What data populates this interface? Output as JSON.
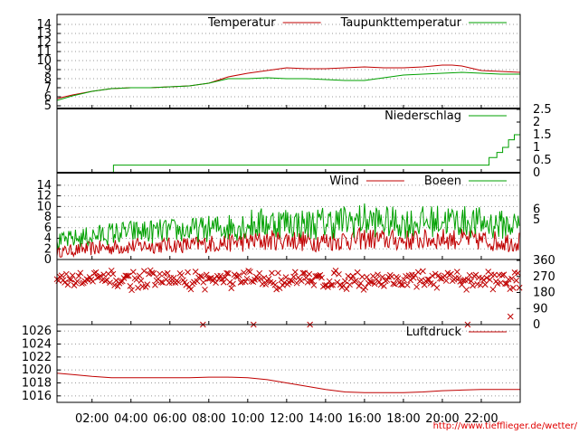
{
  "credit_url": "http://www.tiefflieger.de/wetter/",
  "x_tick_labels": [
    "02:00",
    "04:00",
    "06:00",
    "08:00",
    "10:00",
    "12:00",
    "14:00",
    "16:00",
    "18:00",
    "20:00",
    "22:00"
  ],
  "colors": {
    "red": "#c00000",
    "green": "#00a000",
    "grid": "#999999"
  },
  "chart_data": [
    {
      "id": "temperature",
      "type": "line",
      "x_unit": "hour",
      "xlim": [
        0.2,
        24
      ],
      "ylim": [
        5,
        14.5
      ],
      "y_ticks": [
        5,
        6,
        7,
        8,
        9,
        10,
        11,
        12,
        13,
        14
      ],
      "grid": true,
      "legend_position": "top-right",
      "series": [
        {
          "name": "Temperatur",
          "color": "#c00000",
          "x": [
            0.2,
            1,
            2,
            3,
            4,
            5,
            6,
            7,
            8,
            9,
            10,
            11,
            12,
            13,
            14,
            15,
            16,
            17,
            18,
            19,
            20,
            20.5,
            21,
            22,
            23,
            24
          ],
          "y": [
            5.8,
            6.2,
            6.6,
            6.9,
            7.0,
            7.0,
            7.1,
            7.2,
            7.5,
            8.2,
            8.6,
            8.9,
            9.2,
            9.1,
            9.1,
            9.2,
            9.3,
            9.2,
            9.2,
            9.3,
            9.5,
            9.5,
            9.4,
            8.9,
            8.8,
            8.7
          ]
        },
        {
          "name": "Taupunkttemperatur",
          "color": "#00a000",
          "x": [
            0.2,
            1,
            2,
            3,
            4,
            5,
            6,
            7,
            8,
            9,
            10,
            11,
            12,
            13,
            14,
            15,
            16,
            17,
            18,
            19,
            20,
            21,
            22,
            23,
            24
          ],
          "y": [
            5.6,
            6.1,
            6.6,
            6.9,
            7.0,
            7.0,
            7.1,
            7.2,
            7.5,
            8.0,
            8.0,
            8.1,
            8.0,
            8.0,
            7.9,
            7.8,
            7.8,
            8.1,
            8.4,
            8.5,
            8.6,
            8.7,
            8.6,
            8.5,
            8.5
          ]
        }
      ]
    },
    {
      "id": "precipitation",
      "type": "line",
      "x_unit": "hour",
      "xlim": [
        0.2,
        24
      ],
      "ylim": [
        0,
        2.5
      ],
      "y_ticks": [
        0,
        0.5,
        1,
        1.5,
        2,
        2.5
      ],
      "y_axis_side": "right",
      "legend_position": "top-right",
      "series": [
        {
          "name": "Niederschlag",
          "color": "#00a000",
          "x": [
            0.2,
            3.1,
            3.1,
            22.4,
            22.4,
            22.8,
            22.8,
            23.1,
            23.1,
            23.4,
            23.4,
            23.7,
            23.7,
            24
          ],
          "y": [
            0,
            0,
            0.3,
            0.3,
            0.6,
            0.6,
            0.8,
            0.8,
            1.0,
            1.0,
            1.3,
            1.3,
            1.5,
            1.5
          ]
        }
      ]
    },
    {
      "id": "wind",
      "type": "line",
      "x_unit": "hour",
      "xlim": [
        0.2,
        24
      ],
      "ylim": [
        0,
        15
      ],
      "y_ticks": [
        0,
        2,
        4,
        6,
        8,
        10,
        12,
        14
      ],
      "y2_ticks": [
        5,
        6
      ],
      "grid": true,
      "legend_position": "top-right",
      "series": [
        {
          "name": "Wind",
          "color": "#c00000",
          "x": [
            0.2,
            1,
            2,
            3,
            4,
            5,
            6,
            7,
            8,
            9,
            10,
            11,
            12,
            13,
            14,
            15,
            16,
            17,
            18,
            19,
            20,
            21,
            22,
            23,
            24
          ],
          "y": [
            1.2,
            1.5,
            1.8,
            2.0,
            2.2,
            2.3,
            2.4,
            2.4,
            2.6,
            2.8,
            3.0,
            3.2,
            3.4,
            3.0,
            3.1,
            3.3,
            3.5,
            3.3,
            3.2,
            3.3,
            3.5,
            3.4,
            3.2,
            3.0,
            3.0
          ],
          "amplitude": [
            1.0,
            1.2,
            1.4,
            1.5,
            1.5,
            1.5,
            1.5,
            1.6,
            1.7,
            1.8,
            2.0,
            2.0,
            2.0,
            2.0,
            2.0,
            2.1,
            2.1,
            2.0,
            2.0,
            2.0,
            2.0,
            2.0,
            2.0,
            2.0,
            2.0
          ]
        },
        {
          "name": "Boeen",
          "color": "#00a000",
          "x": [
            0.2,
            1,
            2,
            3,
            4,
            5,
            6,
            7,
            8,
            9,
            10,
            11,
            12,
            13,
            14,
            15,
            16,
            17,
            18,
            19,
            20,
            21,
            22,
            23,
            24
          ],
          "y": [
            3.0,
            3.5,
            4.0,
            4.5,
            4.8,
            4.8,
            5.0,
            5.0,
            5.3,
            5.6,
            6.0,
            6.3,
            6.5,
            6.0,
            6.3,
            6.5,
            6.8,
            6.5,
            6.3,
            6.5,
            6.8,
            6.6,
            6.3,
            6.0,
            6.0
          ],
          "amplitude": [
            1.5,
            1.8,
            2.0,
            2.2,
            2.2,
            2.3,
            2.3,
            2.4,
            2.5,
            2.7,
            3.0,
            3.0,
            3.0,
            3.0,
            3.2,
            3.2,
            3.3,
            3.0,
            3.0,
            3.0,
            3.1,
            3.0,
            3.0,
            2.8,
            2.8
          ]
        }
      ]
    },
    {
      "id": "wind_direction",
      "type": "scatter",
      "x_unit": "hour",
      "xlim": [
        0.2,
        24
      ],
      "ylim": [
        0,
        360
      ],
      "y_ticks": [
        0,
        90,
        180,
        270,
        360
      ],
      "y_axis_side": "right",
      "marker": "x",
      "series": [
        {
          "color": "#c00000",
          "x": [
            7.7,
            10.3,
            13.2,
            21.3,
            23.5
          ],
          "y": [
            0,
            0,
            0,
            0,
            45
          ],
          "band_center": 250,
          "band_spread": 60
        }
      ]
    },
    {
      "id": "pressure",
      "type": "line",
      "x_unit": "hour",
      "xlim": [
        0.2,
        24
      ],
      "ylim": [
        1015,
        1027
      ],
      "y_ticks": [
        1016,
        1018,
        1020,
        1022,
        1024,
        1026
      ],
      "grid": true,
      "legend_position": "top-right",
      "series": [
        {
          "name": "Luftdruck",
          "color": "#c00000",
          "x": [
            0.2,
            1,
            2,
            3,
            4,
            5,
            6,
            7,
            8,
            9,
            10,
            11,
            12,
            13,
            14,
            15,
            16,
            17,
            18,
            19,
            20,
            21,
            22,
            23,
            24
          ],
          "y": [
            1019.5,
            1019.3,
            1019.0,
            1018.8,
            1018.8,
            1018.8,
            1018.8,
            1018.8,
            1018.9,
            1018.9,
            1018.8,
            1018.5,
            1018.0,
            1017.5,
            1017.0,
            1016.6,
            1016.5,
            1016.5,
            1016.5,
            1016.6,
            1016.8,
            1016.9,
            1017.0,
            1017.0,
            1017.0
          ]
        }
      ]
    }
  ]
}
